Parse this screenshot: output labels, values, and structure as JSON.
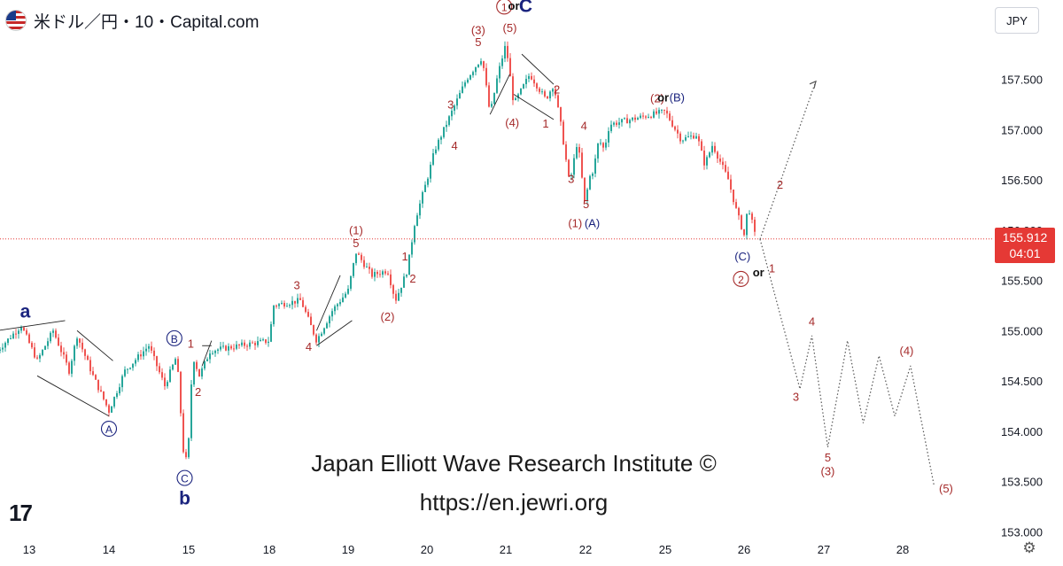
{
  "header": {
    "symbol_title": "米ドル／円・10・Capital.com",
    "flag_icon": "us-flag-icon"
  },
  "currency_button": "JPY",
  "last_price": {
    "value": "155.912",
    "countdown": "04:01"
  },
  "watermark": {
    "line1": "Japan Elliott Wave Research Institute ©",
    "line2": "https://en.jewri.org"
  },
  "logo_text": "17",
  "colors": {
    "candle_up": "#26a69a",
    "candle_down": "#ef5350",
    "label_red": "#a52a2a",
    "label_navy": "#1a237e",
    "price_line": "#e53935"
  },
  "chart_data": {
    "type": "candlestick",
    "title": "",
    "ylim": [
      152.95,
      158.25
    ],
    "y_ticks": [
      "157.500",
      "157.000",
      "156.500",
      "156.000",
      "155.500",
      "155.000",
      "154.500",
      "154.000",
      "153.500",
      "153.000"
    ],
    "x_ticks": [
      "13",
      "14",
      "15",
      "18",
      "19",
      "20",
      "21",
      "22",
      "25",
      "26",
      "27",
      "28"
    ],
    "price_path": [
      {
        "d": 12.6,
        "p": 154.8
      },
      {
        "d": 12.9,
        "p": 155.05
      },
      {
        "d": 13.1,
        "p": 154.7
      },
      {
        "d": 13.3,
        "p": 155.0
      },
      {
        "d": 13.5,
        "p": 154.6
      },
      {
        "d": 13.6,
        "p": 154.95
      },
      {
        "d": 13.8,
        "p": 154.55
      },
      {
        "d": 14.0,
        "p": 154.2
      },
      {
        "d": 14.2,
        "p": 154.6
      },
      {
        "d": 14.5,
        "p": 154.85
      },
      {
        "d": 14.7,
        "p": 154.45
      },
      {
        "d": 14.85,
        "p": 154.75
      },
      {
        "d": 14.95,
        "p": 153.62
      },
      {
        "d": 15.05,
        "p": 154.2
      },
      {
        "d": 15.15,
        "p": 154.75
      },
      {
        "d": 15.4,
        "p": 154.55
      },
      {
        "d": 15.8,
        "p": 154.8
      },
      {
        "d": 18.0,
        "p": 154.9
      },
      {
        "d": 18.05,
        "p": 155.25
      },
      {
        "d": 18.4,
        "p": 155.3
      },
      {
        "d": 18.6,
        "p": 154.9
      },
      {
        "d": 18.8,
        "p": 155.2
      },
      {
        "d": 19.0,
        "p": 155.4
      },
      {
        "d": 19.1,
        "p": 155.78
      },
      {
        "d": 19.3,
        "p": 155.55
      },
      {
        "d": 19.5,
        "p": 155.6
      },
      {
        "d": 19.6,
        "p": 155.3
      },
      {
        "d": 19.75,
        "p": 155.6
      },
      {
        "d": 19.85,
        "p": 156.1
      },
      {
        "d": 20.0,
        "p": 156.5
      },
      {
        "d": 20.1,
        "p": 156.8
      },
      {
        "d": 20.3,
        "p": 157.15
      },
      {
        "d": 20.5,
        "p": 157.5
      },
      {
        "d": 20.7,
        "p": 157.72
      },
      {
        "d": 20.8,
        "p": 157.15
      },
      {
        "d": 20.9,
        "p": 157.55
      },
      {
        "d": 21.0,
        "p": 157.85
      },
      {
        "d": 21.1,
        "p": 157.25
      },
      {
        "d": 21.3,
        "p": 157.55
      },
      {
        "d": 21.5,
        "p": 157.3
      },
      {
        "d": 21.6,
        "p": 157.45
      },
      {
        "d": 21.7,
        "p": 157.0
      },
      {
        "d": 21.8,
        "p": 156.45
      },
      {
        "d": 21.9,
        "p": 156.9
      },
      {
        "d": 22.0,
        "p": 156.2
      },
      {
        "d": 22.1,
        "p": 156.5
      },
      {
        "d": 22.3,
        "p": 156.6
      },
      {
        "d": 22.5,
        "p": 156.9
      },
      {
        "d": 22.7,
        "p": 156.8
      },
      {
        "d": 22.9,
        "p": 157.05
      },
      {
        "d": 25.0,
        "p": 157.18
      },
      {
        "d": 25.2,
        "p": 156.9
      },
      {
        "d": 25.4,
        "p": 156.95
      },
      {
        "d": 25.5,
        "p": 156.65
      },
      {
        "d": 25.6,
        "p": 156.85
      },
      {
        "d": 25.8,
        "p": 156.5
      },
      {
        "d": 25.9,
        "p": 156.2
      },
      {
        "d": 26.0,
        "p": 155.95
      },
      {
        "d": 26.05,
        "p": 156.25
      },
      {
        "d": 26.15,
        "p": 155.9
      }
    ],
    "projection_up": [
      {
        "d": 26.2,
        "p": 155.91
      },
      {
        "d": 26.9,
        "p": 157.48
      }
    ],
    "projection_down": [
      {
        "d": 26.2,
        "p": 155.91
      },
      {
        "d": 26.7,
        "p": 154.42
      },
      {
        "d": 26.85,
        "p": 154.95
      },
      {
        "d": 27.05,
        "p": 153.84
      },
      {
        "d": 27.3,
        "p": 154.9
      },
      {
        "d": 27.5,
        "p": 154.08
      },
      {
        "d": 27.7,
        "p": 154.75
      },
      {
        "d": 27.9,
        "p": 154.15
      },
      {
        "d": 28.1,
        "p": 154.65
      },
      {
        "d": 28.4,
        "p": 153.45
      }
    ],
    "current_price": 155.912,
    "wave_labels": [
      {
        "text": "a",
        "d": 12.95,
        "p": 155.13,
        "style": "navy-big"
      },
      {
        "text": "B",
        "d": 14.82,
        "p": 154.88,
        "style": "navy-circle"
      },
      {
        "text": "A",
        "d": 14.0,
        "p": 153.98,
        "style": "navy-circle"
      },
      {
        "text": "C",
        "d": 14.95,
        "p": 153.49,
        "style": "navy-circle"
      },
      {
        "text": "b",
        "d": 14.95,
        "p": 153.27,
        "style": "navy-big"
      },
      {
        "text": "1",
        "d": 15.08,
        "p": 154.83,
        "style": "red"
      },
      {
        "text": "2",
        "d": 15.35,
        "p": 154.35,
        "style": "red"
      },
      {
        "text": "3",
        "d": 18.35,
        "p": 155.41,
        "style": "red"
      },
      {
        "text": "4",
        "d": 18.5,
        "p": 154.8,
        "style": "red"
      },
      {
        "text": "(1)",
        "d": 19.1,
        "p": 155.96,
        "style": "red"
      },
      {
        "text": "5",
        "d": 19.1,
        "p": 155.83,
        "style": "red"
      },
      {
        "text": "1",
        "d": 19.72,
        "p": 155.7,
        "style": "red"
      },
      {
        "text": "2",
        "d": 19.82,
        "p": 155.48,
        "style": "red"
      },
      {
        "text": "(2)",
        "d": 19.5,
        "p": 155.1,
        "style": "red"
      },
      {
        "text": "3",
        "d": 20.3,
        "p": 157.21,
        "style": "red"
      },
      {
        "text": "4",
        "d": 20.35,
        "p": 156.8,
        "style": "red"
      },
      {
        "text": "(3)",
        "d": 20.65,
        "p": 157.95,
        "style": "red"
      },
      {
        "text": "5",
        "d": 20.65,
        "p": 157.83,
        "style": "red"
      },
      {
        "text": "1",
        "d": 20.98,
        "p": 158.18,
        "style": "red-circle"
      },
      {
        "text": "or",
        "d": 21.1,
        "p": 158.19,
        "style": "dark"
      },
      {
        "text": "C",
        "d": 21.25,
        "p": 158.17,
        "style": "navy-big"
      },
      {
        "text": "(5)",
        "d": 21.05,
        "p": 157.97,
        "style": "red"
      },
      {
        "text": "(4)",
        "d": 21.08,
        "p": 157.03,
        "style": "red"
      },
      {
        "text": "1",
        "d": 21.5,
        "p": 157.02,
        "style": "red"
      },
      {
        "text": "2",
        "d": 21.64,
        "p": 157.36,
        "style": "red"
      },
      {
        "text": "4",
        "d": 21.98,
        "p": 157.0,
        "style": "red"
      },
      {
        "text": "3",
        "d": 21.82,
        "p": 156.47,
        "style": "red"
      },
      {
        "text": "5",
        "d": 22.02,
        "p": 156.22,
        "style": "red"
      },
      {
        "text": "(1)",
        "d": 21.87,
        "p": 156.03,
        "style": "red"
      },
      {
        "text": "(A)",
        "d": 22.25,
        "p": 156.03,
        "style": "navy"
      },
      {
        "text": "(2)",
        "d": 24.7,
        "p": 157.27,
        "style": "red"
      },
      {
        "text": "or",
        "d": 24.92,
        "p": 157.28,
        "style": "dark"
      },
      {
        "text": "(B)",
        "d": 25.15,
        "p": 157.28,
        "style": "navy"
      },
      {
        "text": "(C)",
        "d": 25.98,
        "p": 155.7,
        "style": "navy"
      },
      {
        "text": "2",
        "d": 25.96,
        "p": 155.47,
        "style": "red-circle"
      },
      {
        "text": "or",
        "d": 26.18,
        "p": 155.54,
        "style": "dark"
      },
      {
        "text": "1",
        "d": 26.35,
        "p": 155.58,
        "style": "red"
      },
      {
        "text": "2",
        "d": 26.45,
        "p": 156.41,
        "style": "red"
      },
      {
        "text": "4",
        "d": 26.85,
        "p": 155.05,
        "style": "red"
      },
      {
        "text": "3",
        "d": 26.65,
        "p": 154.3,
        "style": "red"
      },
      {
        "text": "5",
        "d": 27.05,
        "p": 153.7,
        "style": "red"
      },
      {
        "text": "(3)",
        "d": 27.05,
        "p": 153.56,
        "style": "red"
      },
      {
        "text": "(4)",
        "d": 28.05,
        "p": 154.76,
        "style": "red"
      },
      {
        "text": "(5)",
        "d": 28.55,
        "p": 153.39,
        "style": "red"
      }
    ]
  }
}
